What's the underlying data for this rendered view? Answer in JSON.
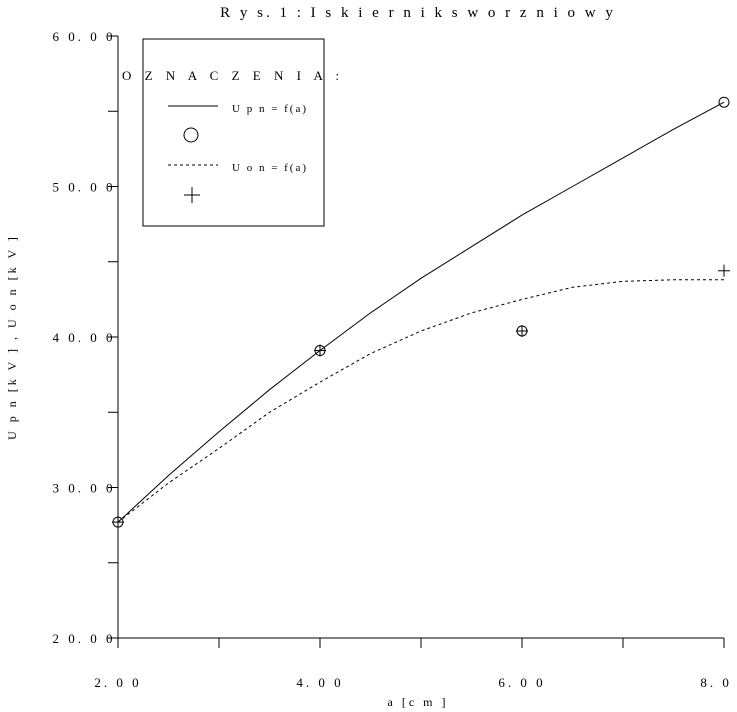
{
  "chart_data": {
    "type": "line",
    "title": "R y s. 1 :  I s k i e r n i k  s w o r z n i o w y",
    "xlabel": "a [c m ]",
    "ylabel": "U p n [k V ] ,  U o n  [k V ]",
    "xlim": [
      2,
      8
    ],
    "ylim": [
      20,
      60
    ],
    "xticks": [
      2,
      4,
      6,
      8
    ],
    "xtick_labels": [
      "2. 0 0",
      "4. 0 0",
      "6. 0 0",
      "8. 0 0"
    ],
    "yticks": [
      20,
      30,
      40,
      50,
      60
    ],
    "ytick_labels": [
      "2 0. 0 0",
      "3 0. 0 0",
      "4 0. 0 0",
      "5 0. 0 0",
      "6 0. 0 0"
    ],
    "grid": false,
    "legend": {
      "title": "O Z N A C Z E N I A :",
      "position": "top-left",
      "entries": [
        {
          "label": "U p n  =  f(a)",
          "line": "solid",
          "marker": "circle"
        },
        {
          "label": "U o n  =  f(a)",
          "line": "dashed",
          "marker": "plus"
        }
      ]
    },
    "series": [
      {
        "name": "U p n  =  f(a)",
        "style": "solid",
        "marker": "circle",
        "points": {
          "x": [
            2,
            4,
            6,
            8
          ],
          "y": [
            27.7,
            39.1,
            40.4,
            55.6
          ]
        },
        "curve": {
          "x": [
            2.0,
            2.5,
            3.0,
            3.5,
            4.0,
            4.5,
            5.0,
            5.5,
            6.0,
            6.5,
            7.0,
            7.5,
            8.0
          ],
          "y": [
            27.7,
            30.8,
            33.7,
            36.5,
            39.1,
            41.6,
            43.9,
            46.0,
            48.1,
            50.0,
            51.9,
            53.8,
            55.6
          ]
        }
      },
      {
        "name": "U o n  =  f(a)",
        "style": "dashed",
        "marker": "plus",
        "points": {
          "x": [
            2,
            4,
            6,
            8
          ],
          "y": [
            27.7,
            39.1,
            40.4,
            44.4
          ]
        },
        "curve": {
          "x": [
            2.0,
            2.5,
            3.0,
            3.5,
            4.0,
            4.5,
            5.0,
            5.5,
            6.0,
            6.5,
            7.0,
            7.5,
            8.0
          ],
          "y": [
            27.7,
            30.3,
            32.6,
            35.0,
            37.0,
            38.9,
            40.4,
            41.6,
            42.5,
            43.3,
            43.7,
            43.8,
            43.8
          ]
        }
      }
    ]
  }
}
